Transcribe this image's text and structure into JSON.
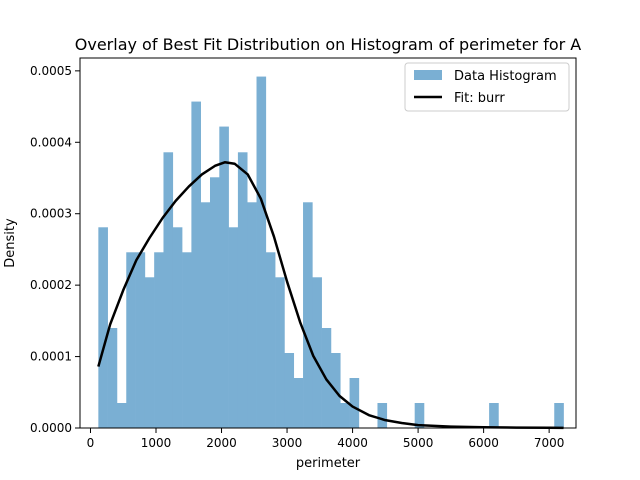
{
  "chart_data": {
    "type": "bar",
    "title": "Overlay of Best Fit Distribution on Histogram of perimeter for A",
    "xlabel": "perimeter",
    "ylabel": "Density",
    "xlim": [
      -160,
      7410
    ],
    "ylim": [
      0,
      0.000518
    ],
    "xticks": [
      0,
      1000,
      2000,
      3000,
      4000,
      5000,
      6000,
      7000
    ],
    "yticks": [
      0.0,
      0.0001,
      0.0002,
      0.0003,
      0.0004,
      0.0005
    ],
    "ytick_labels": [
      "0.0000",
      "0.0001",
      "0.0002",
      "0.0003",
      "0.0004",
      "0.0005"
    ],
    "grid": false,
    "legend_position": "top-right",
    "legend": [
      "Data Histogram",
      "Fit: burr"
    ],
    "series": [
      {
        "name": "Data Histogram",
        "kind": "histogram",
        "color": "#7aafd3",
        "bin_start": 120,
        "bin_width": 142,
        "values": [
          0.000281,
          0.00014,
          3.5e-05,
          0.000246,
          0.000246,
          0.000211,
          0.000246,
          0.000386,
          0.000281,
          0.000246,
          0.000457,
          0.000316,
          0.000351,
          0.000422,
          0.000281,
          0.000386,
          0.000316,
          0.000492,
          0.000246,
          0.000211,
          0.000105,
          7e-05,
          0.000316,
          0.000211,
          0.00014,
          0.000105,
          3.5e-05,
          7e-05,
          0,
          0,
          3.5e-05,
          0,
          0,
          0,
          3.5e-05,
          0,
          0,
          0,
          0,
          0,
          0,
          0,
          3.5e-05,
          0,
          0,
          0,
          0,
          0,
          0,
          3.5e-05
        ]
      },
      {
        "name": "Fit: burr",
        "kind": "line",
        "color": "#000000",
        "x": [
          120,
          300,
          500,
          700,
          900,
          1100,
          1300,
          1500,
          1700,
          1900,
          2050,
          2200,
          2400,
          2600,
          2800,
          3000,
          3200,
          3400,
          3600,
          3800,
          4000,
          4250,
          4500,
          4750,
          5000,
          5500,
          6000,
          6500,
          7000,
          7220
        ],
        "y": [
          8.6e-05,
          0.000145,
          0.000193,
          0.000235,
          0.000266,
          0.000294,
          0.000318,
          0.000338,
          0.000355,
          0.000367,
          0.000372,
          0.00037,
          0.000355,
          0.000321,
          0.000268,
          0.000205,
          0.000148,
          0.000101,
          6.8e-05,
          4.5e-05,
          3e-05,
          1.8e-05,
          1.1e-05,
          7e-06,
          4e-06,
          2e-06,
          1e-06,
          5e-07,
          3e-07,
          2e-07
        ]
      }
    ]
  }
}
